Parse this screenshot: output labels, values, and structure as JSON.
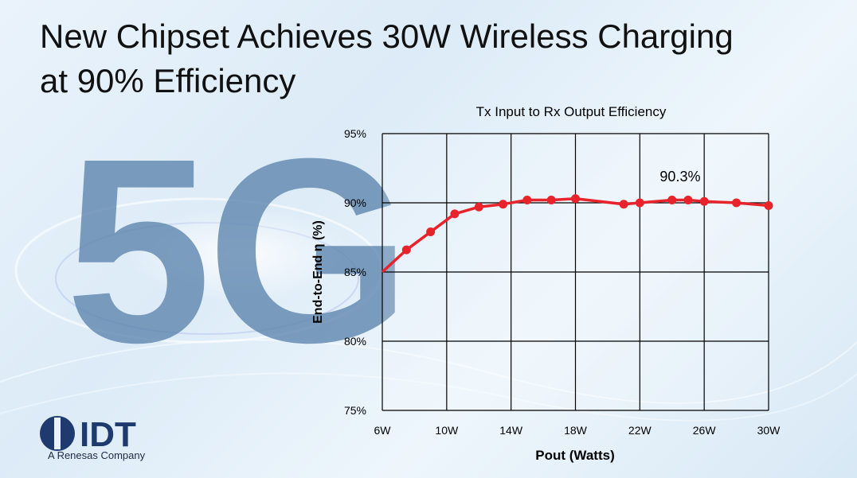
{
  "headline": {
    "line1": "New Chipset Achieves 30W Wireless Charging",
    "line2": "at 90% Efficiency"
  },
  "decor_text": "5G",
  "logo": {
    "wordmark": "IDT",
    "tagline": "A Renesas Company"
  },
  "colors": {
    "series": "#e8232b",
    "axis": "#000000",
    "decor": "#5b84ad",
    "brand": "#1e3a6e"
  },
  "chart_data": {
    "type": "line",
    "title": "Tx Input to Rx Output Efficiency",
    "xlabel": "Pout (Watts)",
    "ylabel": "End-to-End η (%)",
    "xlim": [
      6,
      30
    ],
    "ylim": [
      75,
      95
    ],
    "x_ticks": [
      6,
      10,
      14,
      18,
      22,
      26,
      30
    ],
    "x_tick_labels": [
      "6W",
      "10W",
      "14W",
      "18W",
      "22W",
      "26W",
      "30W"
    ],
    "y_ticks": [
      75,
      80,
      85,
      90,
      95
    ],
    "y_tick_labels": [
      "75%",
      "80%",
      "85%",
      "90%",
      "95%"
    ],
    "grid": true,
    "series": [
      {
        "x": [
          6,
          7.5,
          9,
          10.5,
          12,
          13.5,
          15,
          16.5,
          18,
          21,
          22,
          24,
          25,
          26,
          28,
          30
        ],
        "y": [
          85.0,
          86.6,
          87.9,
          89.2,
          89.7,
          89.9,
          90.2,
          90.2,
          90.3,
          89.9,
          90.0,
          90.2,
          90.2,
          90.1,
          90.0,
          89.8
        ]
      }
    ],
    "annotations": [
      {
        "text": "90.3%",
        "x": 25,
        "y": 90.3
      }
    ]
  }
}
